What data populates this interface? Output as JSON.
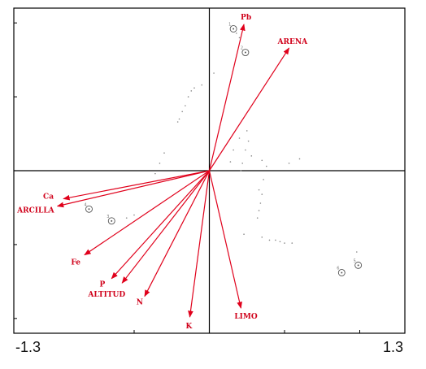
{
  "chart_data": {
    "type": "biplot",
    "xlim": [
      -1.3,
      1.3
    ],
    "ylim": [
      -1.1,
      1.1
    ],
    "x_tick_labels": [
      {
        "value": -1.3,
        "label": "-1.3"
      },
      {
        "value": 1.3,
        "label": "1.3"
      }
    ],
    "y_ticks": [
      -1.0,
      -0.5,
      0.5,
      1.0
    ],
    "x_ticks": [
      -0.5,
      0.5,
      1.0
    ],
    "grid": false,
    "colors": {
      "vectors": "#e0001b",
      "frame": "#000000",
      "sites": "#555555",
      "scores": "#888888"
    },
    "vectors": [
      {
        "name": "Pb",
        "x": 0.23,
        "y": 0.99
      },
      {
        "name": "ARENA",
        "x": 0.53,
        "y": 0.83
      },
      {
        "name": "Ca",
        "x": -0.97,
        "y": -0.19
      },
      {
        "name": "ARCILLA",
        "x": -1.01,
        "y": -0.24
      },
      {
        "name": "Fe",
        "x": -0.83,
        "y": -0.57
      },
      {
        "name": "P",
        "x": -0.65,
        "y": -0.73
      },
      {
        "name": "ALTITUD",
        "x": -0.58,
        "y": -0.76
      },
      {
        "name": "N",
        "x": -0.43,
        "y": -0.85
      },
      {
        "name": "K",
        "x": -0.13,
        "y": -0.99
      },
      {
        "name": "LIMO",
        "x": 0.21,
        "y": -0.93
      }
    ],
    "sites": [
      {
        "label": "1",
        "x": 0.16,
        "y": 0.96
      },
      {
        "label": "2",
        "x": 0.24,
        "y": 0.8
      },
      {
        "label": "3",
        "x": -0.65,
        "y": -0.34
      },
      {
        "label": "4",
        "x": -0.8,
        "y": -0.26
      },
      {
        "label": "5",
        "x": 0.99,
        "y": -0.64
      },
      {
        "label": "6",
        "x": 0.88,
        "y": -0.69
      }
    ],
    "species_scores": [
      [
        0.18,
        0.93
      ],
      [
        0.2,
        0.9
      ],
      [
        -0.1,
        0.56
      ],
      [
        -0.12,
        0.54
      ],
      [
        -0.14,
        0.5
      ],
      [
        -0.16,
        0.44
      ],
      [
        -0.18,
        0.4
      ],
      [
        -0.2,
        0.35
      ],
      [
        -0.21,
        0.33
      ],
      [
        -0.05,
        0.58
      ],
      [
        0.03,
        0.66
      ],
      [
        -0.3,
        0.12
      ],
      [
        -0.33,
        0.05
      ],
      [
        -0.36,
        -0.02
      ],
      [
        0.25,
        0.27
      ],
      [
        0.26,
        0.2
      ],
      [
        0.24,
        0.14
      ],
      [
        0.28,
        0.1
      ],
      [
        0.22,
        0.05
      ],
      [
        0.35,
        0.07
      ],
      [
        0.38,
        0.03
      ],
      [
        0.2,
        0.22
      ],
      [
        0.16,
        0.14
      ],
      [
        0.14,
        0.06
      ],
      [
        0.21,
        0.0
      ],
      [
        0.6,
        0.08
      ],
      [
        0.53,
        0.05
      ],
      [
        0.33,
        -0.13
      ],
      [
        0.36,
        -0.06
      ],
      [
        0.35,
        -0.16
      ],
      [
        0.34,
        -0.22
      ],
      [
        0.33,
        -0.27
      ],
      [
        0.32,
        -0.32
      ],
      [
        0.23,
        -0.43
      ],
      [
        0.35,
        -0.45
      ],
      [
        0.4,
        -0.47
      ],
      [
        0.44,
        -0.47
      ],
      [
        0.47,
        -0.48
      ],
      [
        0.5,
        -0.49
      ],
      [
        0.55,
        -0.49
      ],
      [
        -0.5,
        -0.3
      ],
      [
        -0.55,
        -0.32
      ],
      [
        0.98,
        -0.55
      ]
    ]
  }
}
